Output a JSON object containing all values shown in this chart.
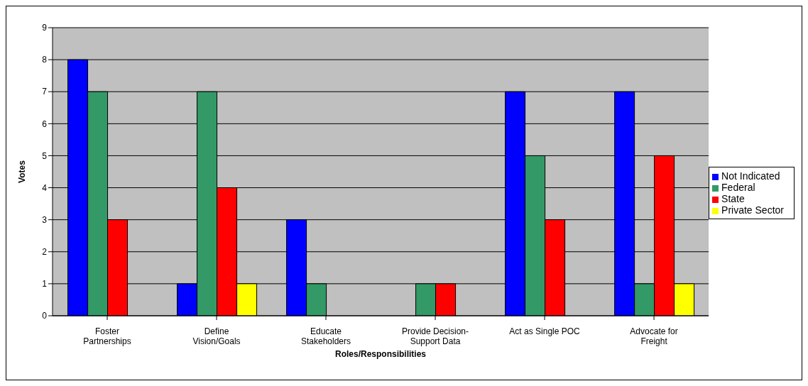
{
  "chart_data": {
    "type": "bar",
    "xlabel": "Roles/Responsibilities",
    "ylabel": "Votes",
    "categories": [
      "Foster Partnerships",
      "Define Vision/Goals",
      "Educate Stakeholders",
      "Provide Decision-Support Data",
      "Act as Single POC",
      "Advocate for Freight"
    ],
    "series": [
      {
        "name": "Not Indicated",
        "color": "#0000ff",
        "values": [
          8,
          1,
          3,
          0,
          7,
          7
        ]
      },
      {
        "name": "Federal",
        "color": "#339966",
        "values": [
          7,
          7,
          1,
          1,
          5,
          1
        ]
      },
      {
        "name": "State",
        "color": "#ff0000",
        "values": [
          3,
          4,
          0,
          1,
          3,
          5
        ]
      },
      {
        "name": "Private Sector",
        "color": "#ffff00",
        "values": [
          0,
          1,
          0,
          0,
          0,
          1
        ]
      }
    ],
    "ylim": [
      0,
      9
    ],
    "yticks": [
      0,
      1,
      2,
      3,
      4,
      5,
      6,
      7,
      8,
      9
    ],
    "grid": "y",
    "legend": "right"
  }
}
